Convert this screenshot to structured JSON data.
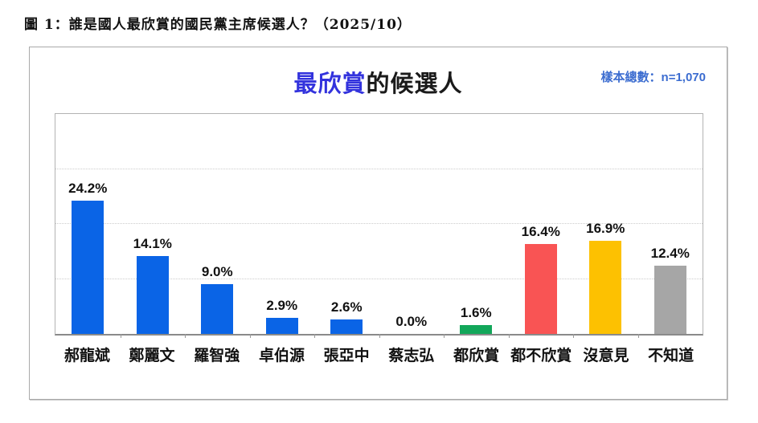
{
  "page": {
    "caption": "圖 1：誰是國人最欣賞的國民黨主席候選人？（2025/10）"
  },
  "chart": {
    "title_highlight": "最欣賞",
    "title_rest": "的候選人",
    "sample_note": "樣本總數：n=1,070",
    "colors": {
      "title_highlight": "#3333dd",
      "sample_note": "#3b6cd0",
      "blue_bar": "#0a64e6",
      "green_bar": "#12a75a",
      "red_bar": "#f95454",
      "yellow_bar": "#fdc101",
      "gray_bar": "#a6a6a6"
    }
  },
  "chart_data": {
    "type": "bar",
    "title": "最欣賞的候選人",
    "subtitle": "樣本總數：n=1,070",
    "categories": [
      "郝龍斌",
      "鄭麗文",
      "羅智強",
      "卓伯源",
      "張亞中",
      "蔡志弘",
      "都欣賞",
      "都不欣賞",
      "沒意見",
      "不知道"
    ],
    "values": [
      24.2,
      14.1,
      9.0,
      2.9,
      2.6,
      0.0,
      1.6,
      16.4,
      16.9,
      12.4
    ],
    "value_labels": [
      "24.2%",
      "14.1%",
      "9.0%",
      "2.9%",
      "2.6%",
      "0.0%",
      "1.6%",
      "16.4%",
      "16.9%",
      "12.4%"
    ],
    "bar_colors": [
      "#0a64e6",
      "#0a64e6",
      "#0a64e6",
      "#0a64e6",
      "#0a64e6",
      "#0a64e6",
      "#12a75a",
      "#f95454",
      "#fdc101",
      "#a6a6a6"
    ],
    "xlabel": "",
    "ylabel": "",
    "ylim": [
      0,
      40
    ],
    "gridlines": [
      10,
      20,
      30
    ],
    "grid_style": "dotted",
    "legend": "none"
  }
}
